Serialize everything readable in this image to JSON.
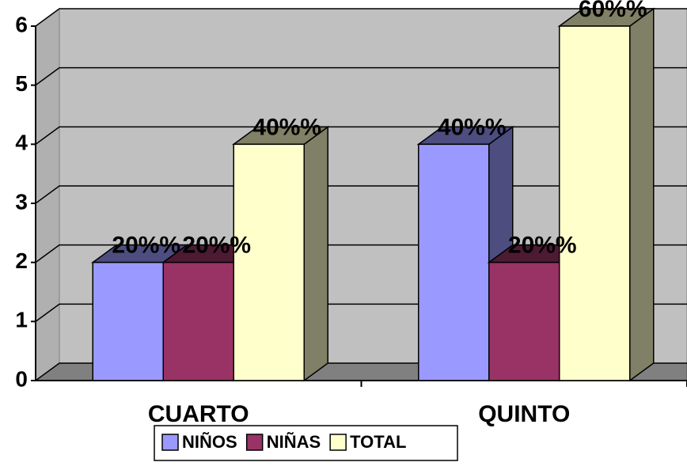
{
  "chart_data": {
    "type": "bar3d",
    "categories": [
      "CUARTO",
      "QUINTO"
    ],
    "series": [
      {
        "name": "NIÑOS",
        "color": "#9999ff",
        "side": "#4d4d80",
        "values": [
          2,
          4
        ],
        "value_labels": [
          "20%%",
          "40%%"
        ]
      },
      {
        "name": "NIÑAS",
        "color": "#993366",
        "side": "#4d1a33",
        "values": [
          2,
          2
        ],
        "value_labels": [
          "20%%",
          "20%%"
        ]
      },
      {
        "name": "TOTAL",
        "color": "#ffffcc",
        "side": "#808066",
        "values": [
          4,
          6
        ],
        "value_labels": [
          "40%%",
          "60%%"
        ]
      }
    ],
    "ylim": [
      0,
      6
    ],
    "yticks": [
      0,
      1,
      2,
      3,
      4,
      5,
      6
    ],
    "grid": true,
    "legend": "bottom"
  }
}
